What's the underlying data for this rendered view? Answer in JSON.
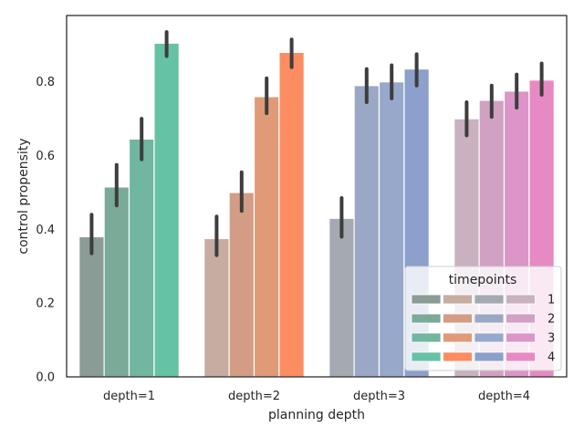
{
  "chart_data": {
    "type": "bar",
    "xlabel": "planning depth",
    "ylabel": "control propensity",
    "ylim": [
      0,
      0.98
    ],
    "yticks": [
      0.0,
      0.2,
      0.4,
      0.6,
      0.8
    ],
    "ytick_labels": [
      "0.0",
      "0.2",
      "0.4",
      "0.6",
      "0.8"
    ],
    "categories": [
      "depth=1",
      "depth=2",
      "depth=3",
      "depth=4"
    ],
    "series": [
      {
        "name": "1",
        "values": [
          0.38,
          0.375,
          0.43,
          0.7
        ],
        "ci_low": [
          0.335,
          0.33,
          0.38,
          0.655
        ],
        "ci_high": [
          0.44,
          0.435,
          0.485,
          0.745
        ]
      },
      {
        "name": "2",
        "values": [
          0.515,
          0.5,
          0.79,
          0.75
        ],
        "ci_low": [
          0.465,
          0.45,
          0.745,
          0.705
        ],
        "ci_high": [
          0.575,
          0.555,
          0.835,
          0.79
        ]
      },
      {
        "name": "3",
        "values": [
          0.645,
          0.76,
          0.8,
          0.775
        ],
        "ci_low": [
          0.59,
          0.715,
          0.755,
          0.73
        ],
        "ci_high": [
          0.7,
          0.81,
          0.845,
          0.82
        ]
      },
      {
        "name": "4",
        "values": [
          0.905,
          0.88,
          0.835,
          0.805
        ],
        "ci_low": [
          0.87,
          0.84,
          0.79,
          0.765
        ],
        "ci_high": [
          0.935,
          0.915,
          0.875,
          0.85
        ]
      }
    ],
    "bar_colors": [
      [
        "#8a9c95",
        "#c6aca1",
        "#a5aab2",
        "#c9b1c0"
      ],
      [
        "#7aaa98",
        "#d29c85",
        "#9ba8c5",
        "#d0a1c3"
      ],
      [
        "#70b6a1",
        "#e19a77",
        "#97a8cb",
        "#db95c6"
      ],
      [
        "#66c2a5",
        "#fc8d62",
        "#8da0cb",
        "#e78ac3"
      ]
    ],
    "legend": {
      "title": "timepoints",
      "placement": "lower-right"
    },
    "grid": false
  }
}
